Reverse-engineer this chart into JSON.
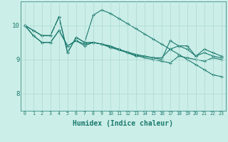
{
  "title": "",
  "xlabel": "Humidex (Indice chaleur)",
  "bg_color": "#cceee8",
  "line_color": "#1a7a6e",
  "grid_color": "#aad8d0",
  "tick_color": "#1a7a6e",
  "x_ticks": [
    0,
    1,
    2,
    3,
    4,
    5,
    6,
    7,
    8,
    9,
    10,
    11,
    12,
    13,
    14,
    15,
    16,
    17,
    18,
    19,
    20,
    21,
    22,
    23
  ],
  "y_ticks": [
    8,
    9,
    10
  ],
  "ylim": [
    7.5,
    10.7
  ],
  "xlim": [
    -0.5,
    23.5
  ],
  "series1": [
    10.0,
    9.85,
    9.7,
    9.7,
    10.25,
    9.2,
    9.65,
    9.5,
    10.3,
    10.45,
    10.35,
    10.2,
    10.05,
    9.9,
    9.75,
    9.6,
    9.45,
    9.3,
    9.15,
    9.0,
    8.85,
    8.7,
    8.55,
    8.5
  ],
  "series2": [
    10.0,
    9.85,
    9.7,
    9.7,
    10.25,
    9.2,
    9.65,
    9.5,
    9.5,
    9.45,
    9.4,
    9.3,
    9.2,
    9.1,
    9.1,
    9.05,
    9.05,
    9.3,
    9.4,
    9.4,
    9.1,
    9.3,
    9.2,
    9.1
  ],
  "series3": [
    10.0,
    9.7,
    9.5,
    9.5,
    9.85,
    9.4,
    9.55,
    9.45,
    9.5,
    9.45,
    9.38,
    9.3,
    9.22,
    9.15,
    9.1,
    9.05,
    9.0,
    9.55,
    9.4,
    9.3,
    9.1,
    9.2,
    9.1,
    9.05
  ],
  "series4": [
    10.0,
    9.7,
    9.5,
    9.5,
    9.85,
    9.4,
    9.55,
    9.4,
    9.5,
    9.45,
    9.35,
    9.28,
    9.2,
    9.12,
    9.05,
    9.0,
    8.95,
    8.9,
    9.1,
    9.05,
    9.0,
    8.95,
    9.05,
    9.0
  ]
}
